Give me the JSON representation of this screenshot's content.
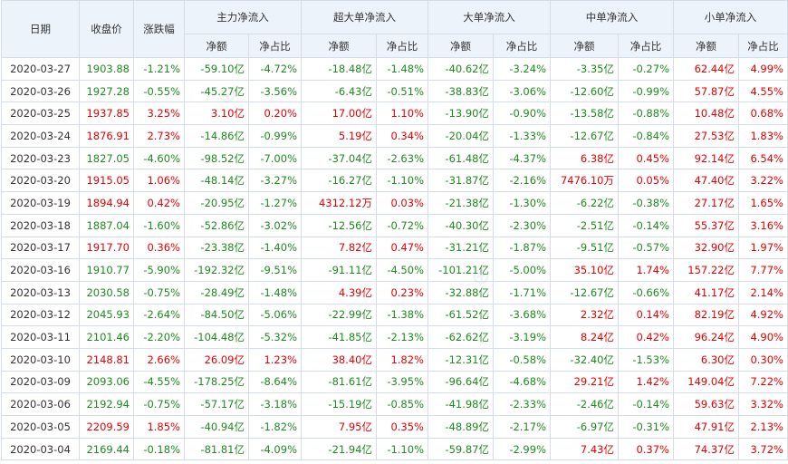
{
  "header": {
    "date": "日期",
    "close": "收盘价",
    "change": "涨跌幅",
    "groups": [
      "主力净流入",
      "超大单净流入",
      "大单净流入",
      "中单净流入",
      "小单净流入"
    ],
    "sub_amount": "净额",
    "sub_ratio": "净占比"
  },
  "colors": {
    "up": "#e60000",
    "down": "#1e8b1e",
    "header_bg": "#edf3fb",
    "border": "#d4dde9"
  },
  "rows": [
    {
      "date": "2020-03-27",
      "close": "1903.88",
      "change": "-1.21%",
      "c": [
        "-59.10亿",
        "-4.72%",
        "-18.48亿",
        "-1.48%",
        "-40.62亿",
        "-3.24%",
        "-3.35亿",
        "-0.27%",
        "62.44亿",
        "4.99%"
      ]
    },
    {
      "date": "2020-03-26",
      "close": "1927.28",
      "change": "-0.55%",
      "c": [
        "-45.27亿",
        "-3.56%",
        "-6.43亿",
        "-0.51%",
        "-38.83亿",
        "-3.06%",
        "-12.60亿",
        "-0.99%",
        "57.87亿",
        "4.55%"
      ]
    },
    {
      "date": "2020-03-25",
      "close": "1937.85",
      "change": "3.25%",
      "c": [
        "3.10亿",
        "0.20%",
        "17.00亿",
        "1.10%",
        "-13.90亿",
        "-0.90%",
        "-13.58亿",
        "-0.88%",
        "10.48亿",
        "0.68%"
      ]
    },
    {
      "date": "2020-03-24",
      "close": "1876.91",
      "change": "2.73%",
      "c": [
        "-14.86亿",
        "-0.99%",
        "5.19亿",
        "0.34%",
        "-20.04亿",
        "-1.33%",
        "-12.67亿",
        "-0.84%",
        "27.53亿",
        "1.83%"
      ]
    },
    {
      "date": "2020-03-23",
      "close": "1827.05",
      "change": "-4.60%",
      "c": [
        "-98.52亿",
        "-7.00%",
        "-37.04亿",
        "-2.63%",
        "-61.48亿",
        "-4.37%",
        "6.38亿",
        "0.45%",
        "92.14亿",
        "6.54%"
      ]
    },
    {
      "date": "2020-03-20",
      "close": "1915.05",
      "change": "1.06%",
      "c": [
        "-48.14亿",
        "-3.27%",
        "-16.27亿",
        "-1.10%",
        "-31.87亿",
        "-2.16%",
        "7476.10万",
        "0.05%",
        "47.40亿",
        "3.22%"
      ]
    },
    {
      "date": "2020-03-19",
      "close": "1894.94",
      "change": "0.42%",
      "c": [
        "-20.95亿",
        "-1.27%",
        "4312.12万",
        "0.03%",
        "-21.38亿",
        "-1.30%",
        "-6.22亿",
        "-0.38%",
        "27.17亿",
        "1.65%"
      ]
    },
    {
      "date": "2020-03-18",
      "close": "1887.04",
      "change": "-1.60%",
      "c": [
        "-52.86亿",
        "-3.02%",
        "-12.56亿",
        "-0.72%",
        "-40.30亿",
        "-2.30%",
        "-2.51亿",
        "-0.14%",
        "55.37亿",
        "3.16%"
      ]
    },
    {
      "date": "2020-03-17",
      "close": "1917.70",
      "change": "0.36%",
      "c": [
        "-23.38亿",
        "-1.40%",
        "7.82亿",
        "0.47%",
        "-31.21亿",
        "-1.87%",
        "-9.51亿",
        "-0.57%",
        "32.90亿",
        "1.97%"
      ]
    },
    {
      "date": "2020-03-16",
      "close": "1910.77",
      "change": "-5.90%",
      "c": [
        "-192.32亿",
        "-9.51%",
        "-91.11亿",
        "-4.50%",
        "-101.21亿",
        "-5.00%",
        "35.10亿",
        "1.74%",
        "157.22亿",
        "7.77%"
      ]
    },
    {
      "date": "2020-03-13",
      "close": "2030.58",
      "change": "-0.75%",
      "c": [
        "-28.49亿",
        "-1.48%",
        "4.39亿",
        "0.23%",
        "-32.88亿",
        "-1.71%",
        "-12.67亿",
        "-0.66%",
        "41.17亿",
        "2.14%"
      ]
    },
    {
      "date": "2020-03-12",
      "close": "2045.93",
      "change": "-2.64%",
      "c": [
        "-84.50亿",
        "-5.06%",
        "-22.99亿",
        "-1.38%",
        "-61.52亿",
        "-3.68%",
        "2.32亿",
        "0.14%",
        "82.19亿",
        "4.92%"
      ]
    },
    {
      "date": "2020-03-11",
      "close": "2101.46",
      "change": "-2.20%",
      "c": [
        "-104.48亿",
        "-5.32%",
        "-41.85亿",
        "-2.13%",
        "-62.62亿",
        "-3.19%",
        "8.24亿",
        "0.42%",
        "96.24亿",
        "4.90%"
      ]
    },
    {
      "date": "2020-03-10",
      "close": "2148.81",
      "change": "2.66%",
      "c": [
        "26.09亿",
        "1.23%",
        "38.40亿",
        "1.82%",
        "-12.31亿",
        "-0.58%",
        "-32.40亿",
        "-1.53%",
        "6.30亿",
        "0.30%"
      ]
    },
    {
      "date": "2020-03-09",
      "close": "2093.06",
      "change": "-4.55%",
      "c": [
        "-178.25亿",
        "-8.64%",
        "-81.61亿",
        "-3.95%",
        "-96.64亿",
        "-4.68%",
        "29.21亿",
        "1.42%",
        "149.04亿",
        "7.22%"
      ]
    },
    {
      "date": "2020-03-06",
      "close": "2192.94",
      "change": "-0.75%",
      "c": [
        "-57.17亿",
        "-3.18%",
        "-15.19亿",
        "-0.85%",
        "-41.98亿",
        "-2.33%",
        "-2.46亿",
        "-0.14%",
        "59.63亿",
        "3.32%"
      ]
    },
    {
      "date": "2020-03-05",
      "close": "2209.59",
      "change": "1.85%",
      "c": [
        "-40.94亿",
        "-1.82%",
        "7.95亿",
        "0.35%",
        "-48.89亿",
        "-2.17%",
        "-6.97亿",
        "-0.31%",
        "47.91亿",
        "2.13%"
      ]
    },
    {
      "date": "2020-03-04",
      "close": "2169.44",
      "change": "-0.18%",
      "c": [
        "-81.81亿",
        "-4.09%",
        "-21.94亿",
        "-1.10%",
        "-59.87亿",
        "-2.99%",
        "7.43亿",
        "0.37%",
        "74.37亿",
        "3.72%"
      ]
    }
  ]
}
